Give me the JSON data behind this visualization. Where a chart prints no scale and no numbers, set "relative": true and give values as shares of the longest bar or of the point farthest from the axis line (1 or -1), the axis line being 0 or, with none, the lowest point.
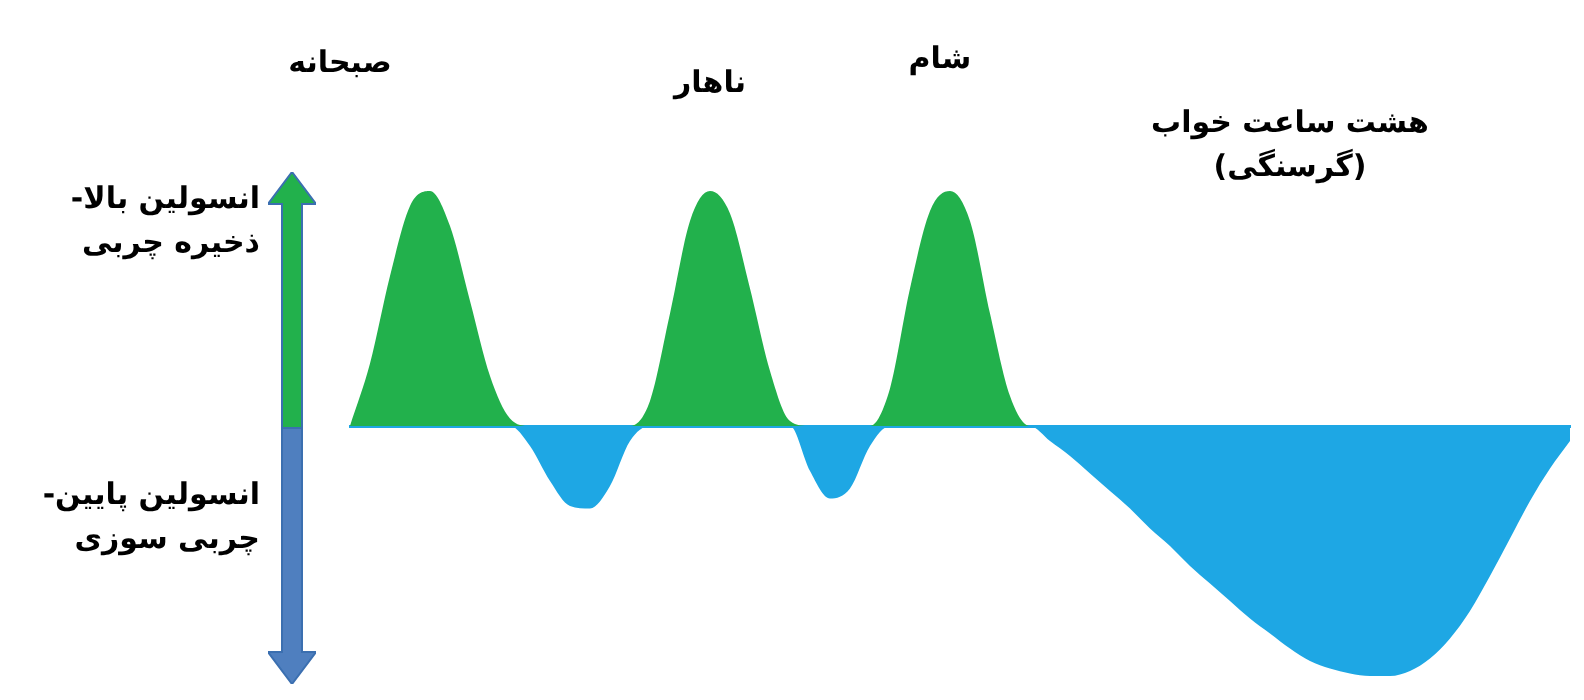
{
  "chart_data": {
    "type": "area",
    "relative": true,
    "categories": [
      null,
      null,
      null,
      null,
      null,
      null,
      null,
      null,
      null,
      null,
      null,
      null,
      null,
      null,
      null,
      null,
      null,
      null,
      null,
      null,
      null,
      null,
      null,
      null,
      null,
      null,
      null,
      null,
      null,
      null,
      null,
      null,
      null,
      null,
      null,
      null,
      null,
      null,
      null,
      null,
      null,
      null,
      null,
      null,
      null,
      null,
      null,
      null,
      null,
      null,
      null,
      null,
      null,
      null,
      null,
      null,
      null,
      null,
      null,
      null,
      null,
      null
    ],
    "series": [
      {
        "color": "#22b14c",
        "values": [
          0,
          0.25,
          0.6,
          0.88,
          0.94,
          0.8,
          0.5,
          0.2,
          0.03,
          0,
          0,
          0,
          0,
          0,
          0,
          0.1,
          0.45,
          0.82,
          0.94,
          0.85,
          0.55,
          0.22,
          0.02,
          0,
          0,
          0,
          0,
          0.15,
          0.55,
          0.86,
          0.94,
          0.82,
          0.45,
          0.12,
          0,
          0,
          0,
          0,
          0,
          0,
          0,
          0,
          0,
          0,
          0,
          0,
          0,
          0,
          0,
          0,
          0,
          0,
          0,
          0,
          0,
          0,
          0,
          0,
          0,
          0,
          0,
          0
        ]
      },
      {
        "color": "#1ea7e4",
        "values": [
          0,
          0,
          0,
          0,
          0,
          0,
          0,
          0,
          0,
          -0.08,
          -0.22,
          -0.32,
          -0.33,
          -0.24,
          -0.06,
          0,
          0,
          0,
          0,
          0,
          0,
          0,
          0,
          -0.18,
          -0.29,
          -0.25,
          -0.08,
          0,
          0,
          0,
          0,
          0,
          0,
          0,
          0,
          -0.06,
          -0.12,
          -0.19,
          -0.26,
          -0.33,
          -0.41,
          -0.48,
          -0.56,
          -0.63,
          -0.7,
          -0.77,
          -0.83,
          -0.89,
          -0.94,
          -0.97,
          -0.99,
          -1.0,
          -1.0,
          -0.98,
          -0.93,
          -0.85,
          -0.74,
          -0.6,
          -0.45,
          -0.3,
          -0.17,
          -0.06
        ]
      }
    ],
    "annotations": [
      "صبحانه",
      "ناهار",
      "شام",
      "هشت ساعت خواب\n(گرسنگی)",
      "انسولین بالا-\nذخیره چربی",
      "انسولین پایین-\nچربی سوزی"
    ]
  }
}
